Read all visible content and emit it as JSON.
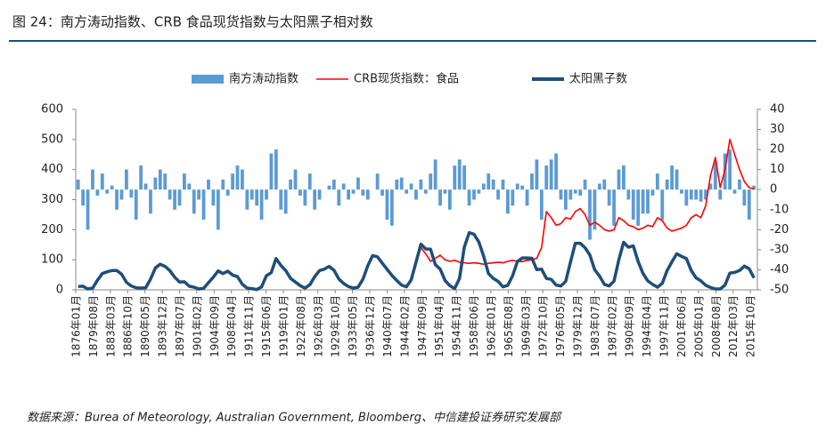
{
  "chart_data": {
    "type": "combo",
    "title": "图 24：南方涛动指数、CRB 食品现货指数与太阳黑子相对数",
    "source": "数据来源：Burea of Meteorology, Australian Government, Bloomberg、中信建投证券研究发展部",
    "xlim": [
      1876,
      2017.2
    ],
    "ylim": [
      0,
      600
    ],
    "yticks": [
      0,
      100,
      200,
      300,
      400,
      500,
      600
    ],
    "y2lim": [
      -50,
      40
    ],
    "y2ticks": [
      -50,
      -40,
      -30,
      -20,
      -10,
      0,
      10,
      20,
      30,
      40
    ],
    "xticks": [
      {
        "value": 1876.0,
        "label": "1876年01月"
      },
      {
        "value": 1879.583,
        "label": "1879年08月"
      },
      {
        "value": 1883.167,
        "label": "1883年03月"
      },
      {
        "value": 1886.75,
        "label": "1886年10月"
      },
      {
        "value": 1890.333,
        "label": "1890年05月"
      },
      {
        "value": 1893.917,
        "label": "1893年12月"
      },
      {
        "value": 1897.5,
        "label": "1897年07月"
      },
      {
        "value": 1901.083,
        "label": "1901年02月"
      },
      {
        "value": 1904.667,
        "label": "1904年09月"
      },
      {
        "value": 1908.25,
        "label": "1908年04月"
      },
      {
        "value": 1911.833,
        "label": "1911年11月"
      },
      {
        "value": 1915.417,
        "label": "1915年06月"
      },
      {
        "value": 1919.0,
        "label": "1919年01月"
      },
      {
        "value": 1922.583,
        "label": "1922年08月"
      },
      {
        "value": 1926.167,
        "label": "1926年03月"
      },
      {
        "value": 1929.75,
        "label": "1929年10月"
      },
      {
        "value": 1933.333,
        "label": "1933年05月"
      },
      {
        "value": 1936.917,
        "label": "1936年12月"
      },
      {
        "value": 1940.5,
        "label": "1940年07月"
      },
      {
        "value": 1944.083,
        "label": "1944年02月"
      },
      {
        "value": 1947.667,
        "label": "1947年09月"
      },
      {
        "value": 1951.25,
        "label": "1951年04月"
      },
      {
        "value": 1954.833,
        "label": "1954年11月"
      },
      {
        "value": 1958.417,
        "label": "1958年06月"
      },
      {
        "value": 1962.0,
        "label": "1962年01月"
      },
      {
        "value": 1965.583,
        "label": "1965年08月"
      },
      {
        "value": 1969.167,
        "label": "1969年03月"
      },
      {
        "value": 1972.75,
        "label": "1972年10月"
      },
      {
        "value": 1976.333,
        "label": "1976年05月"
      },
      {
        "value": 1979.917,
        "label": "1979年12月"
      },
      {
        "value": 1983.5,
        "label": "1983年07月"
      },
      {
        "value": 1987.083,
        "label": "1987年02月"
      },
      {
        "value": 1990.667,
        "label": "1990年09月"
      },
      {
        "value": 1994.25,
        "label": "1994年04月"
      },
      {
        "value": 1997.833,
        "label": "1997年11月"
      },
      {
        "value": 2001.417,
        "label": "2001年06月"
      },
      {
        "value": 2005.0,
        "label": "2005年01月"
      },
      {
        "value": 2008.583,
        "label": "2008年08月"
      },
      {
        "value": 2012.167,
        "label": "2012年03月"
      },
      {
        "value": 2015.75,
        "label": "2015年10月"
      }
    ],
    "x": [
      1876,
      1877,
      1878,
      1879,
      1880,
      1881,
      1882,
      1883,
      1884,
      1885,
      1886,
      1887,
      1888,
      1889,
      1890,
      1891,
      1892,
      1893,
      1894,
      1895,
      1896,
      1897,
      1898,
      1899,
      1900,
      1901,
      1902,
      1903,
      1904,
      1905,
      1906,
      1907,
      1908,
      1909,
      1910,
      1911,
      1912,
      1913,
      1914,
      1915,
      1916,
      1917,
      1918,
      1919,
      1920,
      1921,
      1922,
      1923,
      1924,
      1925,
      1926,
      1927,
      1928,
      1929,
      1930,
      1931,
      1932,
      1933,
      1934,
      1935,
      1936,
      1937,
      1938,
      1939,
      1940,
      1941,
      1942,
      1943,
      1944,
      1945,
      1946,
      1947,
      1948,
      1949,
      1950,
      1951,
      1952,
      1953,
      1954,
      1955,
      1956,
      1957,
      1958,
      1959,
      1960,
      1961,
      1962,
      1963,
      1964,
      1965,
      1966,
      1967,
      1968,
      1969,
      1970,
      1971,
      1972,
      1973,
      1974,
      1975,
      1976,
      1977,
      1978,
      1979,
      1980,
      1981,
      1982,
      1983,
      1984,
      1985,
      1986,
      1987,
      1988,
      1989,
      1990,
      1991,
      1992,
      1993,
      1994,
      1995,
      1996,
      1997,
      1998,
      1999,
      2000,
      2001,
      2002,
      2003,
      2004,
      2005,
      2006,
      2007,
      2008,
      2009,
      2010,
      2011,
      2012,
      2013,
      2014,
      2015,
      2016
    ],
    "series": [
      {
        "name": "南方涛动指数",
        "type": "bar",
        "axis": "y2",
        "color": "#5b9bd5",
        "values": [
          5,
          -8,
          -20,
          10,
          -3,
          8,
          -2,
          2,
          -10,
          -5,
          10,
          -4,
          -15,
          12,
          3,
          -12,
          6,
          10,
          8,
          -5,
          -10,
          -8,
          8,
          3,
          -12,
          -5,
          -15,
          5,
          -8,
          -20,
          5,
          -3,
          8,
          12,
          10,
          -10,
          -5,
          -8,
          -15,
          -5,
          18,
          20,
          -10,
          -12,
          5,
          10,
          -3,
          -8,
          8,
          -10,
          -5,
          0,
          2,
          5,
          -8,
          3,
          -5,
          -2,
          6,
          -3,
          -5,
          0,
          8,
          -3,
          -15,
          -18,
          5,
          6,
          -2,
          3,
          -5,
          5,
          -2,
          8,
          15,
          -8,
          -2,
          -10,
          12,
          15,
          12,
          -8,
          -5,
          -2,
          3,
          8,
          5,
          -5,
          5,
          -12,
          -8,
          3,
          2,
          -8,
          8,
          15,
          -15,
          12,
          15,
          18,
          -5,
          -10,
          -5,
          -2,
          -3,
          5,
          -25,
          -20,
          3,
          5,
          -8,
          -18,
          10,
          12,
          -5,
          -15,
          -18,
          -12,
          -12,
          -3,
          8,
          -15,
          5,
          12,
          10,
          -2,
          -8,
          -5,
          -5,
          -6,
          -5,
          3,
          14,
          -5,
          18,
          20,
          -2,
          5,
          -8,
          -15,
          2
        ]
      },
      {
        "name": "CRB现货指数：食品",
        "type": "line",
        "color": "#ff0000",
        "values": [
          null,
          null,
          null,
          null,
          null,
          null,
          null,
          null,
          null,
          null,
          null,
          null,
          null,
          null,
          null,
          null,
          null,
          null,
          null,
          null,
          null,
          null,
          null,
          null,
          null,
          null,
          null,
          null,
          null,
          null,
          null,
          null,
          null,
          null,
          null,
          null,
          null,
          null,
          null,
          null,
          null,
          null,
          null,
          null,
          null,
          null,
          null,
          null,
          null,
          null,
          null,
          null,
          null,
          null,
          null,
          null,
          null,
          null,
          null,
          null,
          null,
          null,
          null,
          null,
          null,
          null,
          null,
          null,
          null,
          null,
          100,
          140,
          120,
          95,
          105,
          115,
          100,
          95,
          98,
          92,
          90,
          88,
          90,
          88,
          85,
          88,
          90,
          92,
          90,
          95,
          98,
          95,
          94,
          98,
          100,
          105,
          140,
          260,
          240,
          215,
          220,
          240,
          235,
          260,
          270,
          250,
          215,
          225,
          215,
          200,
          195,
          200,
          240,
          230,
          215,
          210,
          200,
          205,
          215,
          210,
          240,
          230,
          205,
          195,
          200,
          205,
          215,
          240,
          250,
          240,
          280,
          380,
          440,
          340,
          400,
          500,
          450,
          400,
          360,
          340,
          335
        ]
      },
      {
        "name": "太阳黑子数",
        "type": "line",
        "color": "#1f4e79",
        "values": [
          11,
          12,
          3,
          6,
          32,
          54,
          60,
          64,
          64,
          52,
          25,
          13,
          7,
          6,
          7,
          36,
          73,
          85,
          78,
          64,
          42,
          26,
          27,
          12,
          9,
          3,
          5,
          24,
          42,
          63,
          54,
          62,
          49,
          44,
          19,
          6,
          4,
          1,
          10,
          47,
          57,
          104,
          81,
          64,
          38,
          26,
          14,
          6,
          17,
          44,
          64,
          69,
          78,
          65,
          36,
          21,
          11,
          6,
          9,
          36,
          80,
          114,
          110,
          89,
          68,
          48,
          31,
          16,
          10,
          33,
          93,
          152,
          136,
          135,
          84,
          69,
          31,
          14,
          4,
          38,
          142,
          190,
          185,
          159,
          112,
          54,
          38,
          28,
          10,
          15,
          47,
          94,
          106,
          106,
          105,
          67,
          69,
          38,
          35,
          16,
          13,
          28,
          93,
          155,
          155,
          140,
          116,
          67,
          46,
          18,
          13,
          29,
          100,
          158,
          142,
          146,
          94,
          55,
          30,
          18,
          9,
          22,
          64,
          93,
          120,
          111,
          104,
          64,
          40,
          30,
          15,
          8,
          3,
          3,
          16,
          56,
          58,
          64,
          79,
          70,
          40
        ]
      }
    ]
  }
}
